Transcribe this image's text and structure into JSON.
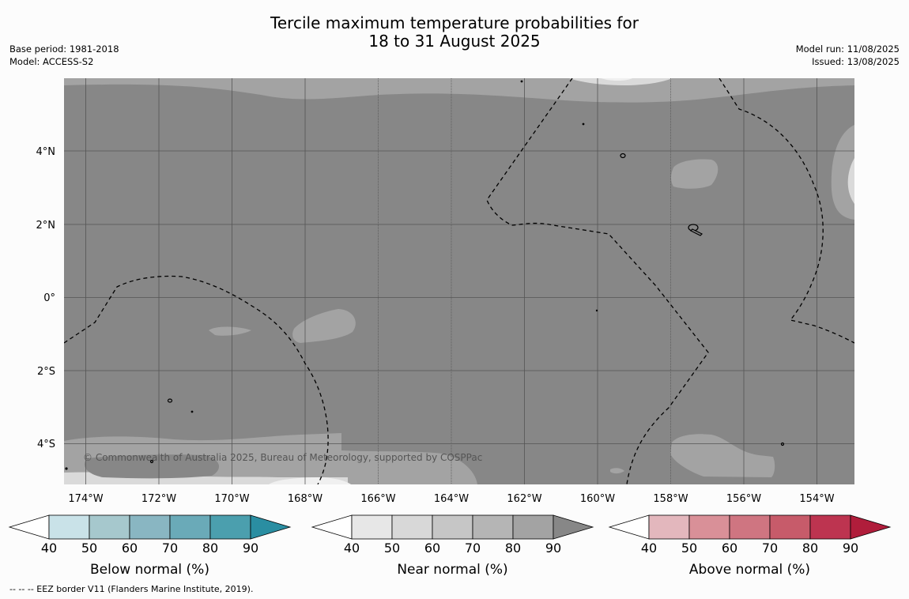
{
  "title": {
    "line1": "Tercile maximum temperature probabilities for",
    "line2": "18 to 31 August 2025"
  },
  "meta_left": {
    "base_period": "Base period: 1981-2018",
    "model": "Model: ACCESS-S2"
  },
  "meta_right": {
    "model_run": "Model run: 11/08/2025",
    "issued": "Issued: 13/08/2025"
  },
  "map": {
    "latitude_labels": [
      "4°N",
      "2°N",
      "0°",
      "2°S",
      "4°S"
    ],
    "longitude_labels": [
      "174°W",
      "172°W",
      "170°W",
      "168°W",
      "166°W",
      "164°W",
      "162°W",
      "160°W",
      "158°W",
      "156°W",
      "154°W"
    ],
    "copyright": "© Commonwealth of Australia 2025, Bureau of Meteorology, supported by COSPPac",
    "colors": {
      "background": "#878787",
      "near_normal_80": "#a3a3a3",
      "near_normal_70": "#b9b9b9",
      "near_normal_50": "#dadada",
      "near_normal_40": "#f0f0f0"
    }
  },
  "legends": [
    {
      "title": "Below normal (%)",
      "ticks": [
        "40",
        "50",
        "60",
        "70",
        "80",
        "90"
      ],
      "colors": [
        "#ffffff",
        "#c9e2e8",
        "#a6c8cd",
        "#89b6c2",
        "#6aaab8",
        "#4b9fae",
        "#2a8ea2"
      ]
    },
    {
      "title": "Near normal (%)",
      "ticks": [
        "40",
        "50",
        "60",
        "70",
        "80",
        "90"
      ],
      "colors": [
        "#ffffff",
        "#e7e7e7",
        "#d8d8d8",
        "#c6c6c6",
        "#b5b5b5",
        "#a3a3a3",
        "#878787"
      ]
    },
    {
      "title": "Above normal (%)",
      "ticks": [
        "40",
        "50",
        "60",
        "70",
        "80",
        "90"
      ],
      "colors": [
        "#ffffff",
        "#e3b7bd",
        "#d99098",
        "#cf7581",
        "#c75b6a",
        "#bd3450",
        "#b01d3b"
      ]
    }
  ],
  "footnote": "--  --  -- EEZ border V11 (Flanders Marine Institute, 2019)."
}
